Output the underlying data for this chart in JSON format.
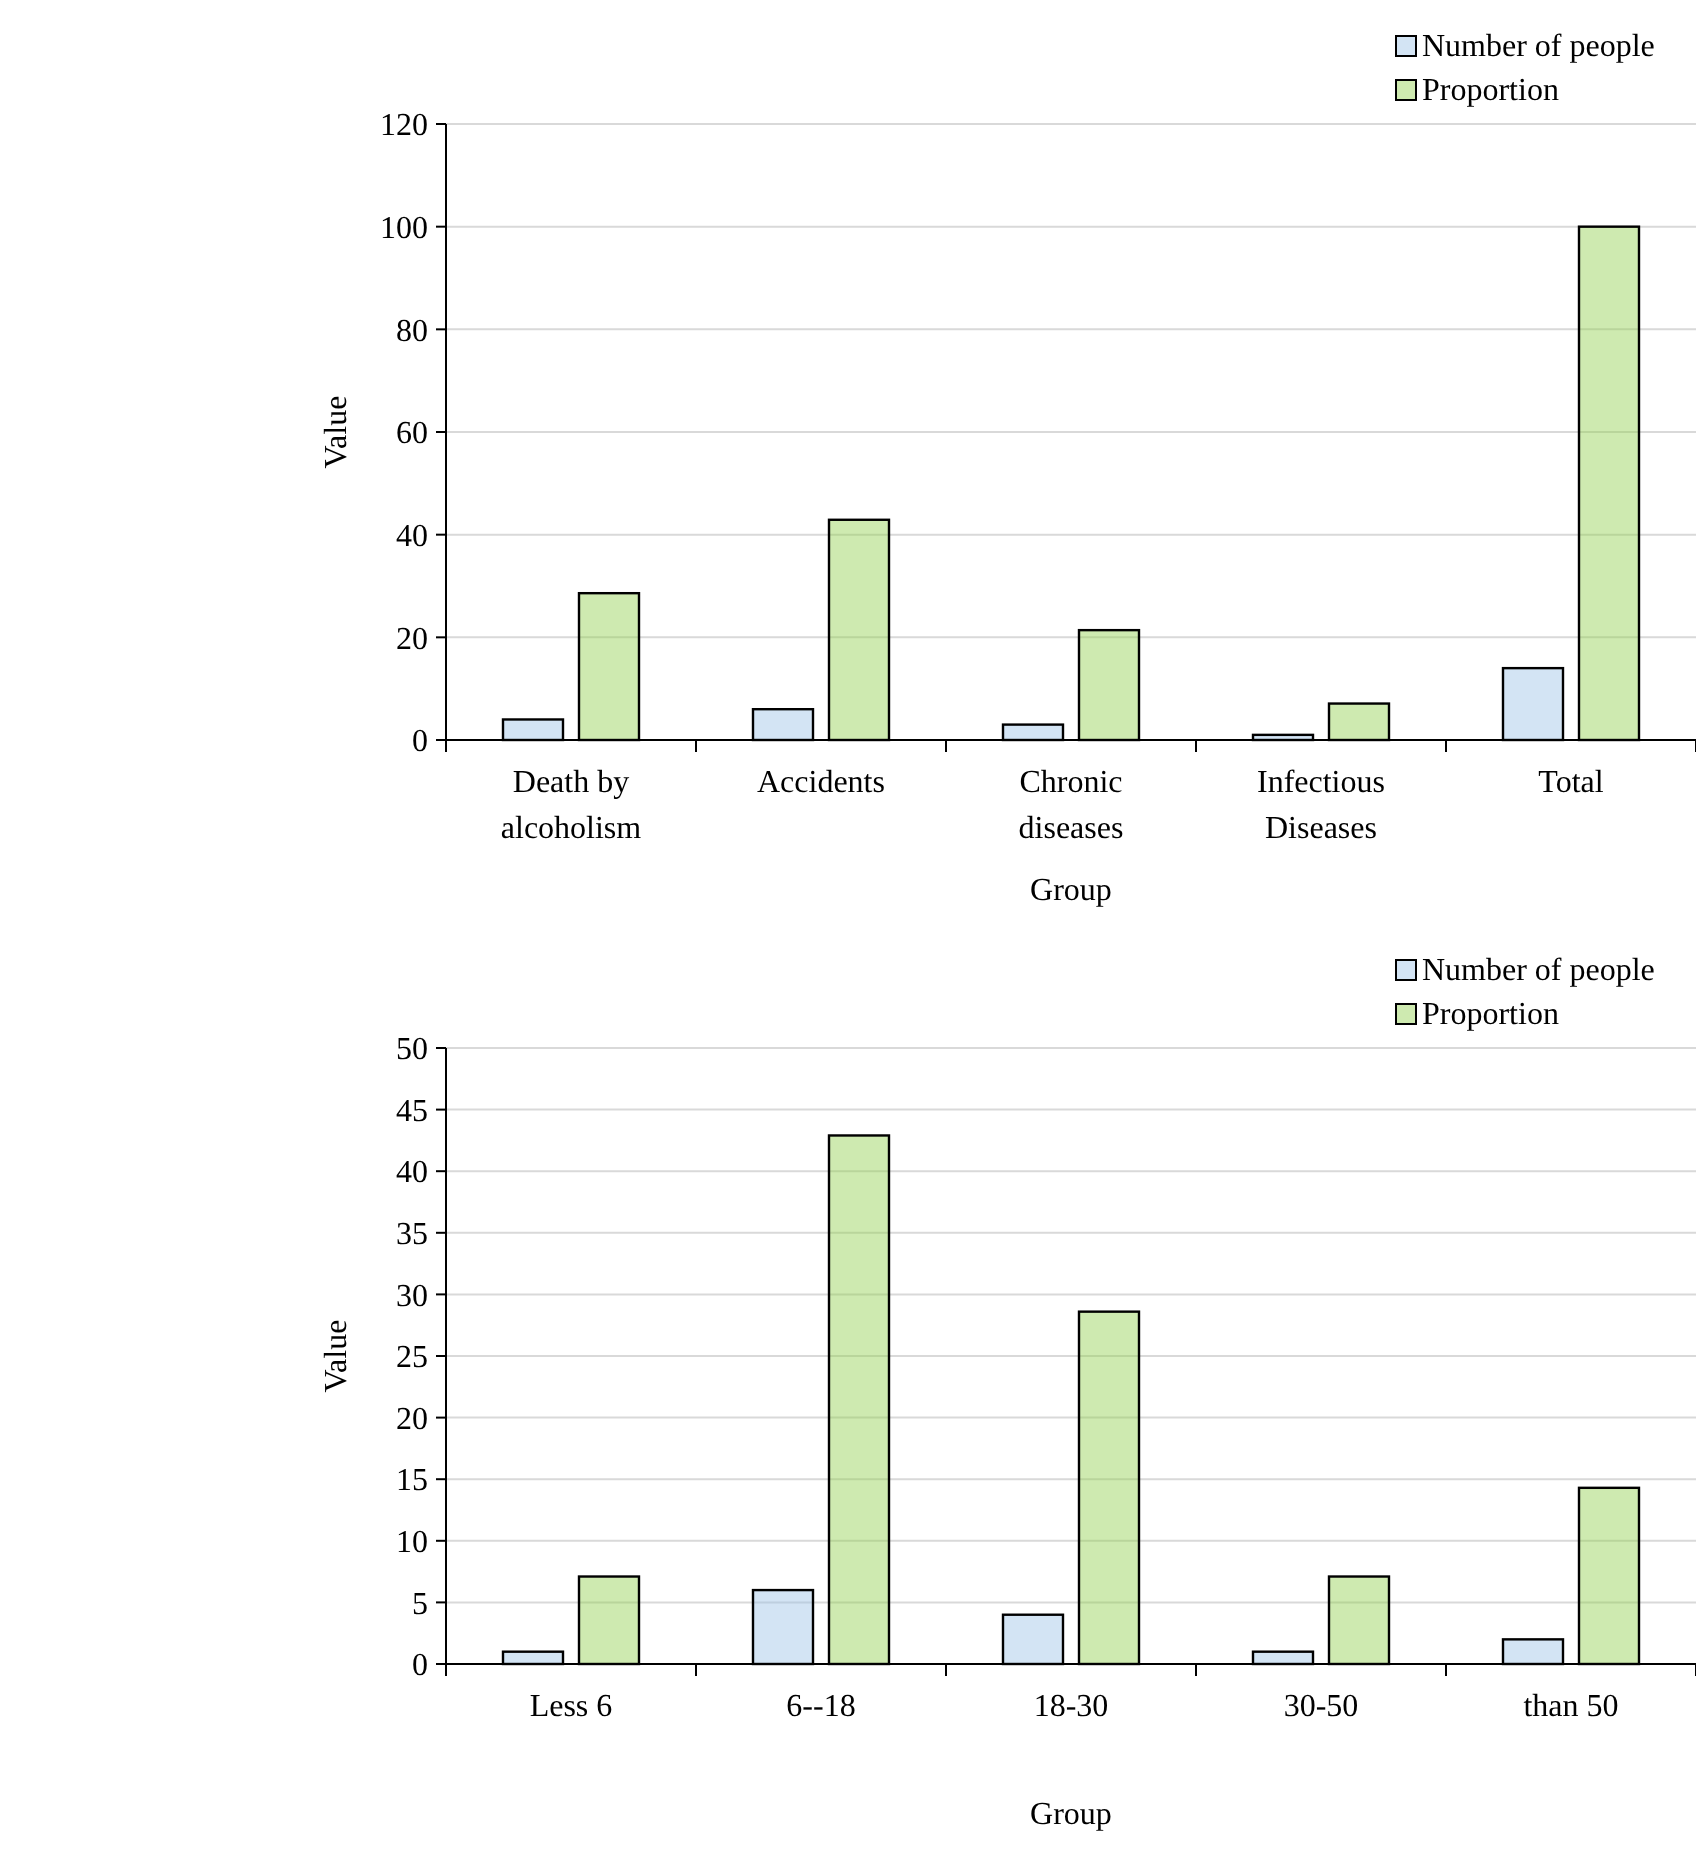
{
  "chart_data": [
    {
      "type": "bar",
      "xlabel": "Group",
      "ylabel": "Value",
      "categories": [
        "Death by alcoholism",
        "Accidents",
        "Chronic diseases",
        "Infectious Diseases",
        "Total"
      ],
      "series": [
        {
          "name": "Number of people",
          "color": "#9dc3e6",
          "values": [
            4,
            6,
            3,
            1,
            14
          ]
        },
        {
          "name": "Proportion",
          "color": "#92d050",
          "values": [
            28.6,
            42.9,
            21.4,
            7.1,
            100
          ]
        }
      ],
      "ylim": [
        0,
        120
      ],
      "yticks": [
        0,
        20,
        40,
        60,
        80,
        100,
        120
      ],
      "grid": "y",
      "legend": "top right"
    },
    {
      "type": "bar",
      "xlabel": "Group",
      "ylabel": "Value",
      "categories": [
        "Less 6",
        "6--18",
        "18-30",
        "30-50",
        "than 50"
      ],
      "series": [
        {
          "name": "Number of people",
          "color": "#9dc3e6",
          "values": [
            1,
            6,
            4,
            1,
            2
          ]
        },
        {
          "name": "Proportion",
          "color": "#92d050",
          "values": [
            7.1,
            42.9,
            28.6,
            7.1,
            14.3
          ]
        }
      ],
      "ylim": [
        0,
        50
      ],
      "yticks": [
        0,
        5,
        10,
        15,
        20,
        25,
        30,
        35,
        40,
        45,
        50
      ],
      "grid": "y",
      "legend": "top right"
    }
  ]
}
